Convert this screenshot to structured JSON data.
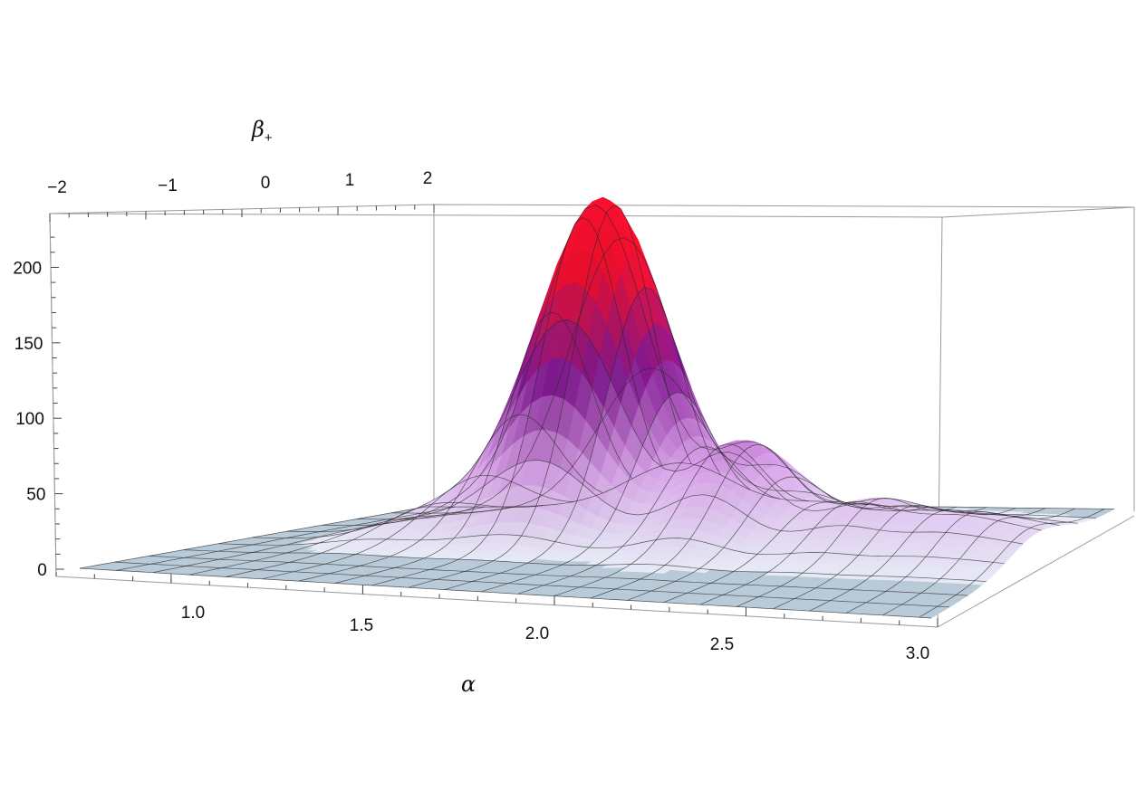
{
  "chart_data": {
    "type": "surface3d",
    "title": "",
    "xlabel": "α",
    "ylabel_symbol": "β",
    "ylabel_subscript": "+",
    "zlabel": "",
    "x_range": [
      0.7,
      3.0
    ],
    "y_range": [
      -2,
      2
    ],
    "z_range": [
      0,
      220
    ],
    "x_ticks": [
      "1.0",
      "1.5",
      "2.0",
      "2.5",
      "3.0"
    ],
    "x_tick_values": [
      1.0,
      1.5,
      2.0,
      2.5,
      3.0
    ],
    "y_ticks": [
      "−2",
      "−1",
      "0",
      "1",
      "2"
    ],
    "y_tick_values": [
      -2,
      -1,
      0,
      1,
      2
    ],
    "z_ticks": [
      "0",
      "50",
      "100",
      "150",
      "200"
    ],
    "z_tick_values": [
      0,
      50,
      100,
      150,
      200
    ],
    "peaks": [
      {
        "alpha": 1.55,
        "beta": 0.9,
        "height": 220
      },
      {
        "alpha": 2.05,
        "beta": 0.6,
        "height": 62
      },
      {
        "alpha": 2.45,
        "beta": 0.5,
        "height": 28
      },
      {
        "alpha": 2.75,
        "beta": 0.4,
        "height": 20
      },
      {
        "alpha": 3.0,
        "beta": 0.3,
        "height": 12
      },
      {
        "alpha": 1.15,
        "beta": 0.4,
        "height": 15
      }
    ],
    "colors": {
      "low": "#e8eef7",
      "mid": "#dda8ee",
      "upper": "#8a1a9a",
      "high": "#ff1030",
      "floor": "#b9cad8",
      "mesh": "#2a2a2a",
      "box": "#999999"
    },
    "grid": false,
    "legend": "none"
  }
}
